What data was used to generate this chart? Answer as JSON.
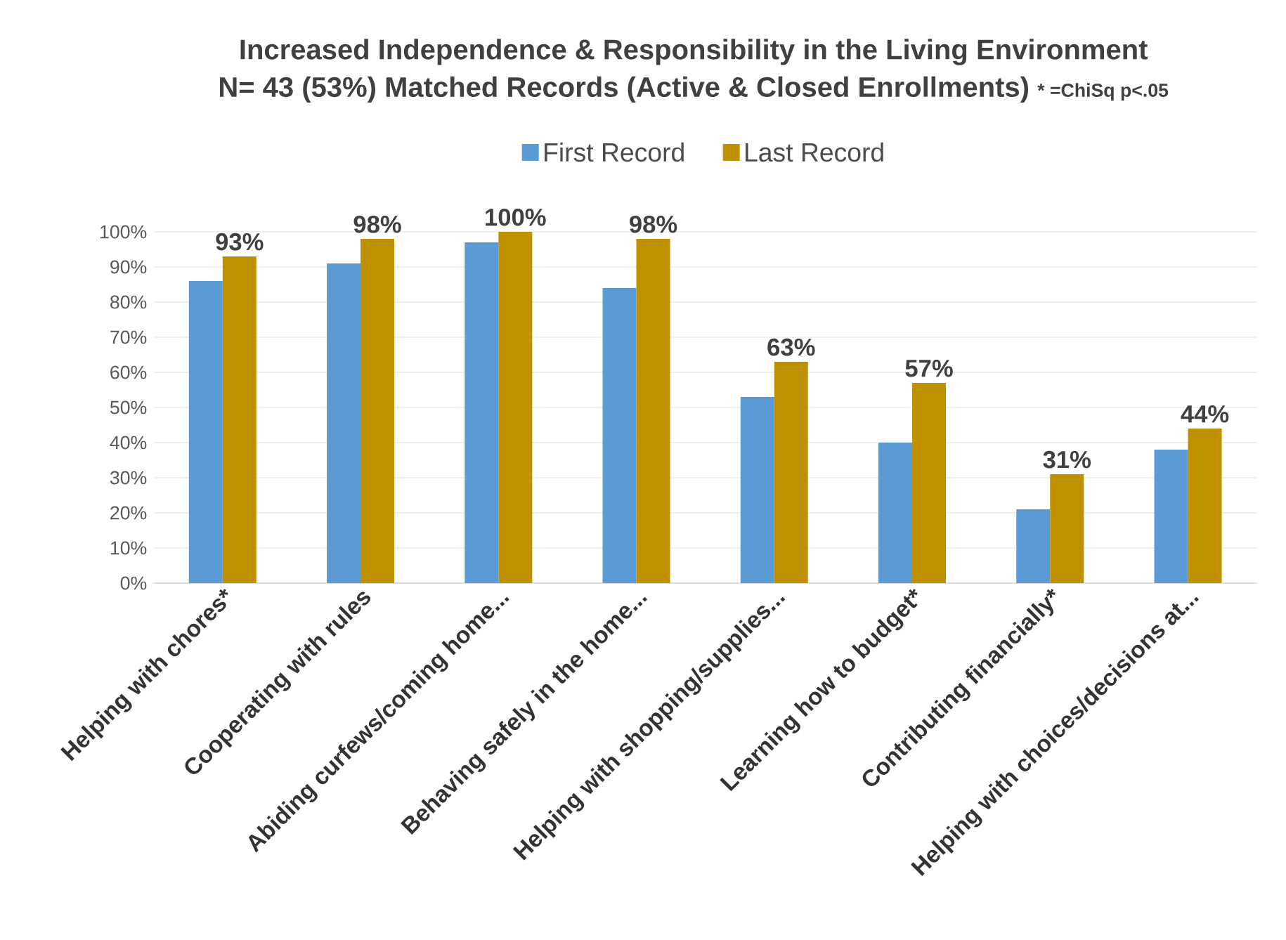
{
  "chart_data": {
    "type": "bar",
    "title": "Increased Independence & Responsibility in the Living Environment",
    "subtitle": "N= 43 (53%) Matched Records (Active & Closed Enrollments)",
    "annotations": [
      "* =ChiSq p<.05"
    ],
    "categories": [
      "Helping with chores*",
      "Cooperating with rules",
      "Abiding curfews/coming home...",
      "Behaving safely in the home...",
      "Helping with shopping/supplies...",
      "Learning how to budget*",
      "Contributing financially*",
      "Helping with choices/decisions at..."
    ],
    "series": [
      {
        "name": "First Record",
        "color": "#5b9bd5",
        "values": [
          86,
          91,
          97,
          84,
          53,
          40,
          21,
          38
        ]
      },
      {
        "name": "Last Record",
        "color": "#bf9000",
        "values": [
          93,
          98,
          100,
          98,
          63,
          57,
          31,
          44
        ],
        "value_labels": [
          "93%",
          "98%",
          "100%",
          "98%",
          "63%",
          "57%",
          "31%",
          "44%"
        ]
      }
    ],
    "ylim": [
      0,
      100
    ],
    "yticks": [
      {
        "value": 0,
        "label": "0%"
      },
      {
        "value": 10,
        "label": "10%"
      },
      {
        "value": 20,
        "label": "20%"
      },
      {
        "value": 30,
        "label": "30%"
      },
      {
        "value": 40,
        "label": "40%"
      },
      {
        "value": 50,
        "label": "50%"
      },
      {
        "value": 60,
        "label": "60%"
      },
      {
        "value": 70,
        "label": "70%"
      },
      {
        "value": 80,
        "label": "80%"
      },
      {
        "value": 90,
        "label": "90%"
      },
      {
        "value": 100,
        "label": "100%"
      }
    ],
    "grid": "y",
    "legend": "top"
  }
}
